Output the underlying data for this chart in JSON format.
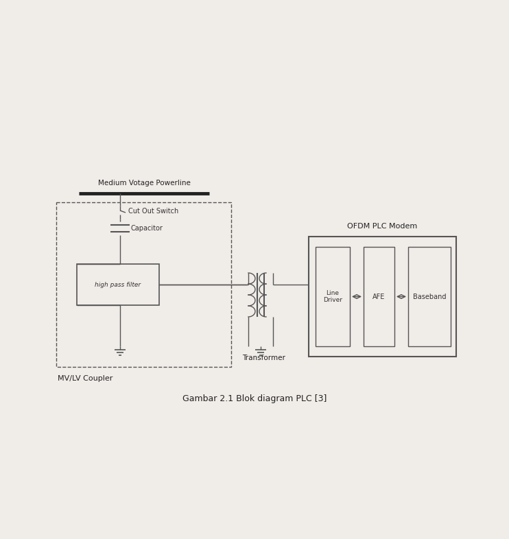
{
  "bg_color": "#f0ece8",
  "line_color": "#555555",
  "title": "Gambar 2.1 Blok diagram PLC [3]",
  "title_fontsize": 9,
  "medium_voltage_label": "Medium Votage Powerline",
  "cut_out_switch_label": "Cut Out Switch",
  "capacitor_label": "Capacitor",
  "hpf_label": "high pass filter",
  "mvlv_label": "MV/LV Coupler",
  "transformer_label": "Transformer",
  "ofdm_label": "OFDM PLC Modem",
  "line_driver_label": "Line\nDriver",
  "afe_label": "AFE",
  "baseband_label": "Baseband"
}
